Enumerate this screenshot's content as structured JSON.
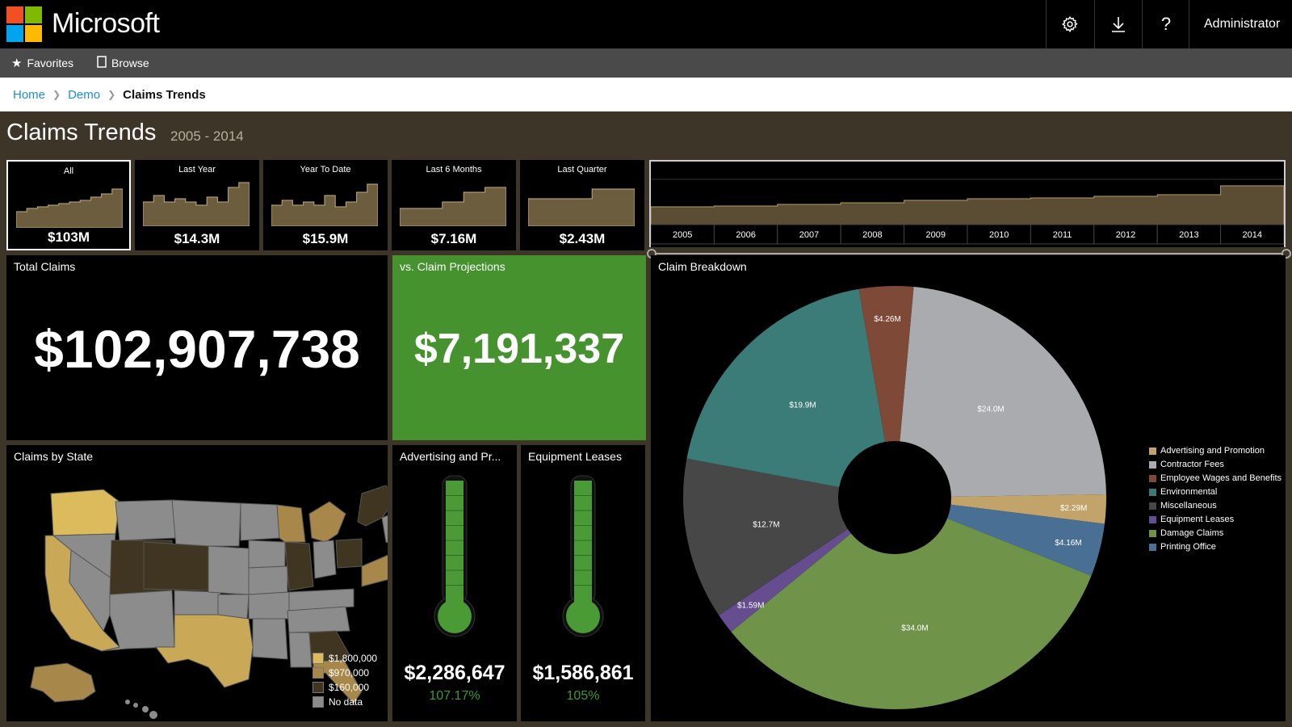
{
  "header": {
    "brand": "Microsoft",
    "settings_icon": "gear-icon",
    "download_icon": "download-icon",
    "help_label": "?",
    "user": "Administrator"
  },
  "nav": {
    "favorites": "Favorites",
    "browse": "Browse"
  },
  "breadcrumb": {
    "home": "Home",
    "demo": "Demo",
    "current": "Claims Trends"
  },
  "page": {
    "title": "Claims Trends",
    "range": "2005 - 2014"
  },
  "tiles": [
    {
      "label": "All",
      "value": "$103M"
    },
    {
      "label": "Last Year",
      "value": "$14.3M"
    },
    {
      "label": "Year To Date",
      "value": "$15.9M"
    },
    {
      "label": "Last 6 Months",
      "value": "$7.16M"
    },
    {
      "label": "Last Quarter",
      "value": "$2.43M"
    }
  ],
  "timeline": {
    "years": [
      "2005",
      "2006",
      "2007",
      "2008",
      "2009",
      "2010",
      "2011",
      "2012",
      "2013",
      "2014"
    ]
  },
  "total_claims": {
    "title": "Total Claims",
    "value": "$102,907,738"
  },
  "projections": {
    "title": "vs. Claim Projections",
    "value": "$7,191,337",
    "color": "#45922f"
  },
  "state_map": {
    "title": "Claims by State",
    "legend": [
      {
        "label": "$1,800,000",
        "color": "#dcbb5c"
      },
      {
        "label": "$970,000",
        "color": "#a8874a"
      },
      {
        "label": "$160,000",
        "color": "#3f3520"
      },
      {
        "label": "No data",
        "color": "#8c8c8c"
      }
    ]
  },
  "gauges": [
    {
      "title": "Advertising and Pr...",
      "value": "$2,286,647",
      "percent": "107.17%",
      "fill": 1.0
    },
    {
      "title": "Equipment Leases",
      "value": "$1,586,861",
      "percent": "105%",
      "fill": 1.0
    }
  ],
  "chart_data": {
    "type": "pie",
    "title": "Claim Breakdown",
    "donut": true,
    "slices": [
      {
        "name": "Contractor Fees",
        "value": 24.0,
        "label": "$24.0M",
        "color": "#a9abae"
      },
      {
        "name": "Advertising and Promotion",
        "value": 2.29,
        "label": "$2.29M",
        "color": "#c2a46b"
      },
      {
        "name": "Printing Office",
        "value": 4.16,
        "label": "$4.16M",
        "color": "#4a6f95"
      },
      {
        "name": "Damage Claims",
        "value": 34.0,
        "label": "$34.0M",
        "color": "#6f9449"
      },
      {
        "name": "Equipment Leases",
        "value": 1.59,
        "label": "$1.59M",
        "color": "#654d8f"
      },
      {
        "name": "Miscellaneous",
        "value": 12.7,
        "label": "$12.7M",
        "color": "#474747"
      },
      {
        "name": "Environmental",
        "value": 19.9,
        "label": "$19.9M",
        "color": "#3b7b78"
      },
      {
        "name": "Employee Wages and Benefits",
        "value": 4.26,
        "label": "$4.26M",
        "color": "#7e4a37"
      }
    ],
    "legend": [
      {
        "name": "Advertising and Promotion",
        "color": "#c2a46b"
      },
      {
        "name": "Contractor Fees",
        "color": "#a9abae"
      },
      {
        "name": "Employee Wages and Benefits",
        "color": "#7e4a37"
      },
      {
        "name": "Environmental",
        "color": "#3b7b78"
      },
      {
        "name": "Miscellaneous",
        "color": "#474747"
      },
      {
        "name": "Equipment Leases",
        "color": "#654d8f"
      },
      {
        "name": "Damage Claims",
        "color": "#6f9449"
      },
      {
        "name": "Printing Office",
        "color": "#4a6f95"
      }
    ],
    "legend_position": "right"
  }
}
